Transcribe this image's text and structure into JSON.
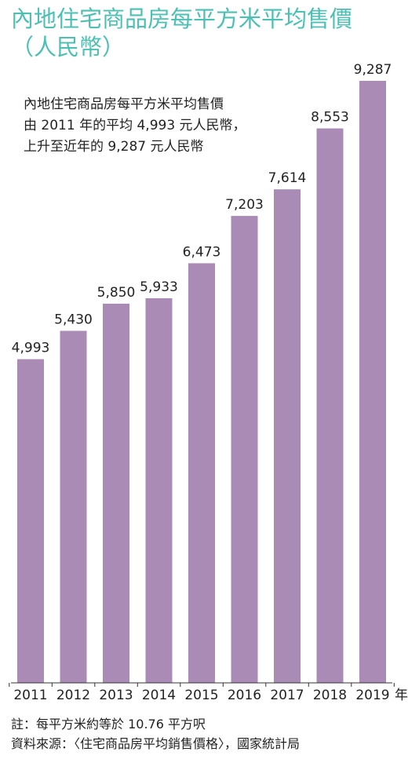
{
  "title": "內地住宅商品房每平方米平均售價",
  "subtitle": "（人民幣）",
  "annotation": {
    "line1": "內地住宅商品房每平方米平均售價",
    "line2": "由 2011 年的平均 4,993 元人民幣，",
    "line3": "上升至近年的 9,287 元人民幣"
  },
  "year_suffix": "年",
  "footer": {
    "note": "註：每平方米約等於 10.76 平方呎",
    "source": "資料來源：〈住宅商品房平均銷售價格〉，國家統計局"
  },
  "colors": {
    "bar": "#a98bb5",
    "title": "#4dc0b4",
    "text": "#222222"
  },
  "chart_data": {
    "type": "bar",
    "categories": [
      "2011",
      "2012",
      "2013",
      "2014",
      "2015",
      "2016",
      "2017",
      "2018",
      "2019"
    ],
    "values": [
      4993,
      5430,
      5850,
      5933,
      6473,
      7203,
      7614,
      8553,
      9287
    ],
    "value_labels": [
      "4,993",
      "5,430",
      "5,850",
      "5,933",
      "6,473",
      "7,203",
      "7,614",
      "8,553",
      "9,287"
    ],
    "title": "內地住宅商品房每平方米平均售價",
    "xlabel": "",
    "ylabel": "",
    "ylim": [
      0,
      10000
    ],
    "grid": false,
    "legend": "none"
  }
}
